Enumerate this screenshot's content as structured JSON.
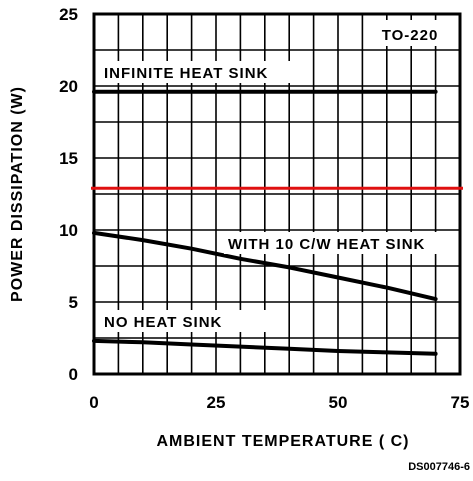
{
  "chart_data": {
    "type": "line",
    "xlabel": "AMBIENT TEMPERATURE ( C)",
    "ylabel": "POWER DISSIPATION (W)",
    "xlim": [
      0,
      75
    ],
    "ylim": [
      0,
      25
    ],
    "x_ticks": [
      0,
      25,
      50,
      75
    ],
    "y_ticks": [
      0,
      5,
      10,
      15,
      20,
      25
    ],
    "x_grid_step": 5,
    "y_grid_step": 2.5,
    "grid": true,
    "package_label": "TO-220",
    "document_id": "DS007746-6",
    "series": [
      {
        "name": "INFINITE HEAT SINK",
        "x": [
          0,
          70
        ],
        "y": [
          19.6,
          19.6
        ]
      },
      {
        "name": "WITH 10 C/W HEAT SINK",
        "x": [
          0,
          10,
          20,
          30,
          40,
          50,
          60,
          70
        ],
        "y": [
          9.8,
          9.3,
          8.7,
          8.0,
          7.4,
          6.7,
          6.0,
          5.2
        ]
      },
      {
        "name": "NO HEAT SINK",
        "x": [
          0,
          10,
          20,
          30,
          40,
          50,
          60,
          70
        ],
        "y": [
          2.3,
          2.2,
          2.05,
          1.9,
          1.75,
          1.6,
          1.5,
          1.4
        ]
      }
    ],
    "reference_line": {
      "y": 12.9,
      "color": "#e01010"
    },
    "colors": {
      "curve": "#000000",
      "grid": "#000000"
    }
  }
}
